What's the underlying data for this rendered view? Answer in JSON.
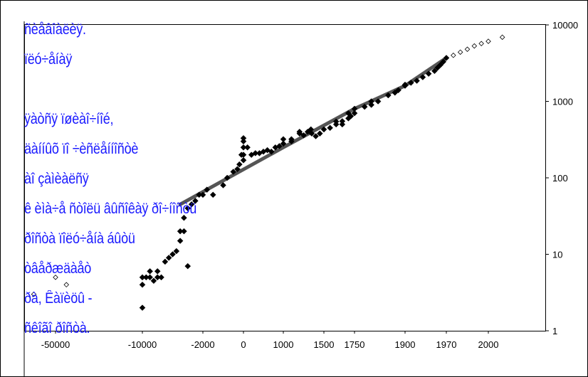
{
  "chart_data": {
    "type": "scatter",
    "title": "",
    "xlabel": "",
    "ylabel": "",
    "y_scale": "log",
    "ylim": [
      1,
      10000
    ],
    "y_ticks": [
      "1",
      "10",
      "100",
      "1000",
      "10000"
    ],
    "x_ticks": [
      "-50000",
      "-10000",
      "-2000",
      "0",
      "1000",
      "1500",
      "1750",
      "1900",
      "1970",
      "2000"
    ],
    "grid": false,
    "legend": "none",
    "marker_colors": {
      "filled": "#000000",
      "hollow": "#ffffff",
      "trend": "#555555"
    },
    "series": [
      {
        "marker": "filled-diamond",
        "points": [
          [
            -10000,
            2
          ],
          [
            -10000,
            4
          ],
          [
            -10000,
            5
          ],
          [
            -9500,
            5
          ],
          [
            -9000,
            5
          ],
          [
            -9000,
            6
          ],
          [
            -8500,
            4.5
          ],
          [
            -8000,
            5
          ],
          [
            -8000,
            6
          ],
          [
            -7500,
            5
          ],
          [
            -7000,
            8
          ],
          [
            -6500,
            9
          ],
          [
            -6000,
            10
          ],
          [
            -5500,
            11
          ],
          [
            -5000,
            15
          ],
          [
            -5000,
            20
          ],
          [
            -4500,
            20
          ],
          [
            -4500,
            30
          ],
          [
            -4000,
            7
          ],
          [
            -4000,
            40
          ],
          [
            -3500,
            45
          ],
          [
            -3000,
            50
          ],
          [
            -2500,
            60
          ],
          [
            -2000,
            60
          ],
          [
            -1800,
            70
          ],
          [
            -1500,
            60
          ],
          [
            -1000,
            80
          ],
          [
            -800,
            100
          ],
          [
            -500,
            120
          ],
          [
            -300,
            130
          ],
          [
            -200,
            150
          ],
          [
            -100,
            200
          ],
          [
            0,
            170
          ],
          [
            0,
            200
          ],
          [
            0,
            250
          ],
          [
            0,
            300
          ],
          [
            0,
            330
          ],
          [
            100,
            250
          ],
          [
            200,
            200
          ],
          [
            300,
            210
          ],
          [
            400,
            210
          ],
          [
            500,
            220
          ],
          [
            600,
            230
          ],
          [
            700,
            220
          ],
          [
            800,
            250
          ],
          [
            900,
            260
          ],
          [
            1000,
            280
          ],
          [
            1000,
            320
          ],
          [
            1100,
            300
          ],
          [
            1100,
            320
          ],
          [
            1200,
            380
          ],
          [
            1200,
            400
          ],
          [
            1250,
            360
          ],
          [
            1300,
            400
          ],
          [
            1340,
            430
          ],
          [
            1350,
            380
          ],
          [
            1400,
            350
          ],
          [
            1450,
            380
          ],
          [
            1500,
            430
          ],
          [
            1550,
            450
          ],
          [
            1600,
            500
          ],
          [
            1600,
            545
          ],
          [
            1650,
            500
          ],
          [
            1650,
            550
          ],
          [
            1700,
            600
          ],
          [
            1700,
            700
          ],
          [
            1720,
            640
          ],
          [
            1750,
            700
          ],
          [
            1750,
            800
          ],
          [
            1780,
            850
          ],
          [
            1800,
            900
          ],
          [
            1800,
            1000
          ],
          [
            1820,
            1000
          ],
          [
            1850,
            1200
          ],
          [
            1870,
            1300
          ],
          [
            1880,
            1400
          ],
          [
            1900,
            1600
          ],
          [
            1900,
            1650
          ],
          [
            1910,
            1750
          ],
          [
            1920,
            1860
          ],
          [
            1930,
            2070
          ],
          [
            1940,
            2300
          ],
          [
            1950,
            2500
          ],
          [
            1955,
            2750
          ],
          [
            1960,
            3000
          ],
          [
            1965,
            3300
          ],
          [
            1970,
            3700
          ]
        ]
      },
      {
        "marker": "hollow-diamond",
        "points": [
          [
            -60000,
            3
          ],
          [
            -50000,
            5
          ],
          [
            -45000,
            4
          ],
          [
            1975,
            4000
          ],
          [
            1980,
            4400
          ],
          [
            1985,
            4800
          ],
          [
            1990,
            5300
          ],
          [
            1995,
            5700
          ],
          [
            2000,
            6100
          ],
          [
            2010,
            6900
          ]
        ]
      },
      {
        "marker": "trend-line",
        "points": [
          [
            -5000,
            45
          ],
          [
            1000,
            250
          ],
          [
            1750,
            800
          ],
          [
            1900,
            1600
          ],
          [
            1970,
            3700
          ]
        ]
      }
    ]
  },
  "overlay_text": [
    "ñèåâîàëèÿ.",
    "ïëó÷åíàÿ",
    "",
    "ÿàòñÿ ïøèàî÷íîé,",
    "äàííûõ ïî ÷èñëåííîñòè",
    "àî çàìèàëñÿ",
    "ê èìà÷å ñòîëü âûñîêàÿ ðî÷íîñòü",
    "ðîñòà ïîëó÷åíà áûòü",
    "òâåðæäàåò",
    "ðà, Êàïèöû -",
    "ñêîãî ðîñòà."
  ]
}
